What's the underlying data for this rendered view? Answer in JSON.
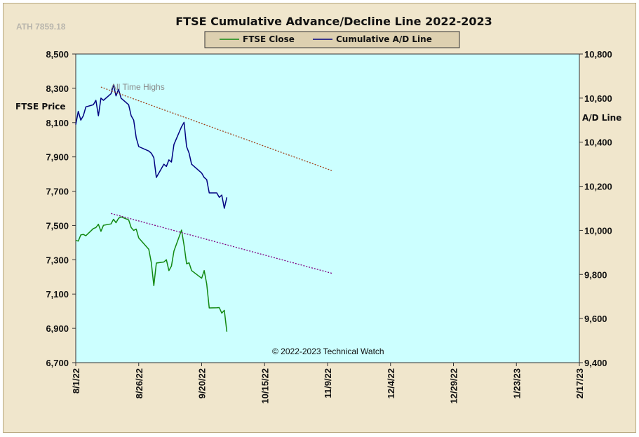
{
  "chart_data": {
    "type": "line",
    "title": "FTSE Cumulative  Advance/Decline  Line 2022-2023",
    "ath_label": "ATH 7859.18",
    "annotation": "All Time Highs",
    "copyright": "© 2022-2023  Technical Watch",
    "left_axis": {
      "label": "FTSE Price",
      "range": [
        6700,
        8500
      ],
      "ticks": [
        "6,700",
        "6,900",
        "7,100",
        "7,300",
        "7,500",
        "7,700",
        "7,900",
        "8,100",
        "8,300",
        "8,500"
      ]
    },
    "right_axis": {
      "label": "A/D Line",
      "range": [
        9400,
        10800
      ],
      "ticks": [
        "9,400",
        "9,600",
        "9,800",
        "10,000",
        "10,200",
        "10,400",
        "10,600",
        "10,800"
      ]
    },
    "x_axis": {
      "start": "2022-08-01",
      "end": "2023-02-17",
      "ticks": [
        "8/1/22",
        "8/26/22",
        "9/20/22",
        "10/15/22",
        "11/9/22",
        "12/4/22",
        "12/29/22",
        "1/23/23",
        "2/17/23"
      ]
    },
    "legend": [
      "FTSE Close",
      "Cumulative A/D Line"
    ],
    "colors": {
      "plot_bg": "#ccffff",
      "frame_bg": "#f0e6cc",
      "ftse": "#118811",
      "ad": "#000080",
      "trend_ftse": "#800080",
      "trend_ad": "#a0401a"
    },
    "series": [
      {
        "name": "FTSE Close",
        "axis": "left",
        "x": [
          "2022-08-01",
          "2022-08-02",
          "2022-08-03",
          "2022-08-04",
          "2022-08-05",
          "2022-08-08",
          "2022-08-09",
          "2022-08-10",
          "2022-08-11",
          "2022-08-12",
          "2022-08-15",
          "2022-08-16",
          "2022-08-17",
          "2022-08-18",
          "2022-08-19",
          "2022-08-22",
          "2022-08-23",
          "2022-08-24",
          "2022-08-25",
          "2022-08-26",
          "2022-08-30",
          "2022-08-31",
          "2022-09-01",
          "2022-09-02",
          "2022-09-05",
          "2022-09-06",
          "2022-09-07",
          "2022-09-08",
          "2022-09-09",
          "2022-09-12",
          "2022-09-13",
          "2022-09-14",
          "2022-09-15",
          "2022-09-16",
          "2022-09-20",
          "2022-09-21",
          "2022-09-22",
          "2022-09-23",
          "2022-09-26",
          "2022-09-27",
          "2022-09-28",
          "2022-09-29",
          "2022-09-30"
        ],
        "values": [
          7413,
          7409,
          7445,
          7448,
          7440,
          7482,
          7488,
          7507,
          7466,
          7501,
          7509,
          7536,
          7516,
          7542,
          7550,
          7533,
          7488,
          7471,
          7479,
          7427,
          7361,
          7284,
          7149,
          7281,
          7287,
          7300,
          7237,
          7263,
          7351,
          7473,
          7385,
          7277,
          7282,
          7237,
          7192,
          7237,
          7159,
          7019,
          7020,
          7021,
          6989,
          7005,
          6881
        ]
      },
      {
        "name": "Cumulative A/D Line",
        "axis": "right",
        "x": [
          "2022-08-01",
          "2022-08-02",
          "2022-08-03",
          "2022-08-04",
          "2022-08-05",
          "2022-08-08",
          "2022-08-09",
          "2022-08-10",
          "2022-08-11",
          "2022-08-12",
          "2022-08-15",
          "2022-08-16",
          "2022-08-17",
          "2022-08-18",
          "2022-08-19",
          "2022-08-22",
          "2022-08-23",
          "2022-08-24",
          "2022-08-25",
          "2022-08-26",
          "2022-08-30",
          "2022-08-31",
          "2022-09-01",
          "2022-09-02",
          "2022-09-05",
          "2022-09-06",
          "2022-09-07",
          "2022-09-08",
          "2022-09-09",
          "2022-09-12",
          "2022-09-13",
          "2022-09-14",
          "2022-09-15",
          "2022-09-16",
          "2022-09-20",
          "2022-09-21",
          "2022-09-22",
          "2022-09-23",
          "2022-09-26",
          "2022-09-27",
          "2022-09-28",
          "2022-09-29",
          "2022-09-30"
        ],
        "values": [
          10480,
          10540,
          10500,
          10520,
          10560,
          10570,
          10590,
          10520,
          10600,
          10590,
          10620,
          10660,
          10610,
          10640,
          10600,
          10570,
          10520,
          10500,
          10420,
          10380,
          10360,
          10350,
          10330,
          10240,
          10300,
          10290,
          10320,
          10310,
          10390,
          10470,
          10490,
          10380,
          10350,
          10300,
          10260,
          10240,
          10230,
          10170,
          10170,
          10150,
          10160,
          10100,
          10150
        ]
      },
      {
        "name": "FTSE trend",
        "axis": "left",
        "style": "dotted",
        "x": [
          "2022-08-15",
          "2022-11-11"
        ],
        "values": [
          7570,
          7220
        ]
      },
      {
        "name": "A/D trend",
        "axis": "right",
        "style": "dotted",
        "x": [
          "2022-08-11",
          "2022-11-11"
        ],
        "values": [
          10650,
          10270
        ]
      }
    ]
  }
}
